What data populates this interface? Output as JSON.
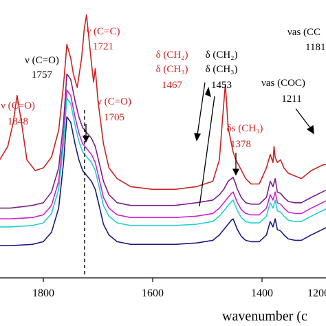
{
  "chart_data": {
    "type": "line",
    "xlabel": "wavenumber (c",
    "x_reversed": true,
    "xlim": [
      1900,
      1180
    ],
    "xticks": [
      1800,
      1600,
      1400,
      1200
    ],
    "xtick_labels": [
      "1800",
      "1600",
      "1400",
      "1200"
    ],
    "ylim": [
      0,
      1
    ],
    "series": [
      {
        "color": "#cc2222",
        "x": [
          1900,
          1880,
          1865,
          1855,
          1848,
          1840,
          1830,
          1815,
          1800,
          1785,
          1772,
          1763,
          1757,
          1750,
          1745,
          1738,
          1730,
          1725,
          1721,
          1717,
          1712,
          1708,
          1705,
          1700,
          1690,
          1680,
          1665,
          1640,
          1600,
          1560,
          1520,
          1490,
          1478,
          1472,
          1468,
          1467,
          1465,
          1462,
          1458,
          1453,
          1448,
          1440,
          1430,
          1420,
          1405,
          1392,
          1385,
          1380,
          1378,
          1376,
          1372,
          1366,
          1360,
          1352,
          1340,
          1328,
          1310,
          1290,
          1270,
          1255,
          1240,
          1228,
          1218,
          1212,
          1208,
          1205,
          1200,
          1195,
          1190,
          1186,
          1183,
          1181
        ],
        "y": [
          0.4,
          0.44,
          0.49,
          0.58,
          0.68,
          0.58,
          0.44,
          0.4,
          0.41,
          0.45,
          0.55,
          0.72,
          0.87,
          0.82,
          0.76,
          0.71,
          0.82,
          0.93,
          0.98,
          0.9,
          0.8,
          0.73,
          0.78,
          0.66,
          0.5,
          0.41,
          0.37,
          0.34,
          0.33,
          0.33,
          0.34,
          0.36,
          0.44,
          0.6,
          0.7,
          0.72,
          0.66,
          0.56,
          0.52,
          0.47,
          0.44,
          0.41,
          0.37,
          0.35,
          0.35,
          0.41,
          0.46,
          0.43,
          0.49,
          0.45,
          0.43,
          0.44,
          0.41,
          0.39,
          0.38,
          0.37,
          0.4,
          0.42,
          0.43,
          0.48,
          0.52,
          0.55,
          0.61,
          0.64,
          0.6,
          0.62,
          0.72,
          0.76,
          0.86,
          0.84,
          0.8,
          0.78
        ]
      },
      {
        "color": "#7b1f8a",
        "x": [
          1900,
          1860,
          1820,
          1800,
          1785,
          1772,
          1763,
          1757,
          1750,
          1742,
          1735,
          1728,
          1720,
          1712,
          1705,
          1698,
          1690,
          1680,
          1665,
          1640,
          1600,
          1560,
          1520,
          1490,
          1478,
          1470,
          1462,
          1456,
          1453,
          1450,
          1445,
          1438,
          1430,
          1420,
          1405,
          1392,
          1385,
          1380,
          1376,
          1372,
          1366,
          1360,
          1352,
          1340,
          1328,
          1310,
          1290,
          1270,
          1255,
          1240,
          1228,
          1218,
          1212,
          1208,
          1205,
          1200,
          1195,
          1190,
          1186,
          1183,
          1181
        ],
        "y": [
          0.26,
          0.26,
          0.27,
          0.28,
          0.32,
          0.41,
          0.58,
          0.76,
          0.74,
          0.66,
          0.6,
          0.56,
          0.54,
          0.52,
          0.49,
          0.43,
          0.36,
          0.31,
          0.28,
          0.27,
          0.27,
          0.27,
          0.28,
          0.29,
          0.31,
          0.33,
          0.36,
          0.37,
          0.375,
          0.36,
          0.33,
          0.3,
          0.28,
          0.275,
          0.275,
          0.3,
          0.36,
          0.34,
          0.37,
          0.32,
          0.315,
          0.3,
          0.285,
          0.28,
          0.28,
          0.3,
          0.32,
          0.34,
          0.38,
          0.41,
          0.44,
          0.49,
          0.54,
          0.52,
          0.55,
          0.62,
          0.66,
          0.74,
          0.72,
          0.7,
          0.68
        ]
      },
      {
        "color": "#cc22cc",
        "x": [
          1900,
          1860,
          1820,
          1800,
          1785,
          1772,
          1763,
          1757,
          1750,
          1742,
          1735,
          1728,
          1720,
          1712,
          1705,
          1698,
          1690,
          1680,
          1665,
          1640,
          1600,
          1560,
          1520,
          1490,
          1478,
          1470,
          1462,
          1456,
          1453,
          1450,
          1445,
          1438,
          1430,
          1420,
          1405,
          1392,
          1385,
          1380,
          1376,
          1372,
          1366,
          1360,
          1352,
          1340,
          1328,
          1310,
          1290,
          1270,
          1255,
          1240,
          1228,
          1218,
          1212,
          1208,
          1205,
          1200,
          1195,
          1190,
          1186,
          1183,
          1181
        ],
        "y": [
          0.22,
          0.22,
          0.225,
          0.235,
          0.27,
          0.36,
          0.53,
          0.7,
          0.68,
          0.6,
          0.54,
          0.5,
          0.48,
          0.46,
          0.43,
          0.37,
          0.3,
          0.26,
          0.235,
          0.225,
          0.225,
          0.225,
          0.23,
          0.24,
          0.26,
          0.28,
          0.3,
          0.315,
          0.32,
          0.305,
          0.28,
          0.255,
          0.24,
          0.235,
          0.235,
          0.26,
          0.31,
          0.29,
          0.32,
          0.28,
          0.275,
          0.26,
          0.245,
          0.24,
          0.24,
          0.26,
          0.28,
          0.3,
          0.34,
          0.37,
          0.4,
          0.45,
          0.5,
          0.48,
          0.51,
          0.58,
          0.62,
          0.7,
          0.68,
          0.66,
          0.64
        ]
      },
      {
        "color": "#20d0d0",
        "x": [
          1900,
          1860,
          1820,
          1800,
          1785,
          1772,
          1763,
          1757,
          1750,
          1742,
          1735,
          1728,
          1720,
          1712,
          1705,
          1698,
          1690,
          1680,
          1665,
          1640,
          1600,
          1560,
          1520,
          1490,
          1478,
          1470,
          1462,
          1456,
          1453,
          1450,
          1445,
          1438,
          1430,
          1420,
          1405,
          1392,
          1385,
          1380,
          1376,
          1372,
          1366,
          1360,
          1352,
          1340,
          1328,
          1310,
          1290,
          1270,
          1255,
          1240,
          1228,
          1218,
          1212,
          1208,
          1205,
          1200,
          1195,
          1190,
          1186,
          1183,
          1181
        ],
        "y": [
          0.19,
          0.19,
          0.195,
          0.205,
          0.24,
          0.33,
          0.5,
          0.67,
          0.65,
          0.57,
          0.51,
          0.47,
          0.45,
          0.43,
          0.4,
          0.34,
          0.27,
          0.23,
          0.205,
          0.195,
          0.195,
          0.195,
          0.2,
          0.21,
          0.23,
          0.25,
          0.27,
          0.285,
          0.29,
          0.275,
          0.25,
          0.225,
          0.21,
          0.205,
          0.205,
          0.23,
          0.28,
          0.26,
          0.29,
          0.25,
          0.245,
          0.23,
          0.215,
          0.21,
          0.21,
          0.23,
          0.25,
          0.27,
          0.31,
          0.34,
          0.37,
          0.42,
          0.47,
          0.45,
          0.48,
          0.55,
          0.59,
          0.67,
          0.65,
          0.63,
          0.61
        ]
      },
      {
        "color": "#1a1a80",
        "x": [
          1900,
          1860,
          1820,
          1800,
          1785,
          1772,
          1763,
          1757,
          1750,
          1742,
          1735,
          1728,
          1720,
          1712,
          1705,
          1698,
          1690,
          1680,
          1665,
          1640,
          1600,
          1560,
          1520,
          1490,
          1478,
          1470,
          1462,
          1456,
          1453,
          1450,
          1445,
          1438,
          1430,
          1420,
          1405,
          1392,
          1385,
          1380,
          1376,
          1372,
          1366,
          1360,
          1352,
          1340,
          1328,
          1310,
          1290,
          1270,
          1255,
          1240,
          1228,
          1218,
          1212,
          1208,
          1205,
          1200,
          1195,
          1190,
          1186,
          1183,
          1181
        ],
        "y": [
          0.12,
          0.12,
          0.125,
          0.135,
          0.17,
          0.26,
          0.43,
          0.6,
          0.58,
          0.5,
          0.44,
          0.4,
          0.38,
          0.36,
          0.33,
          0.27,
          0.2,
          0.16,
          0.135,
          0.125,
          0.125,
          0.125,
          0.13,
          0.14,
          0.16,
          0.18,
          0.2,
          0.215,
          0.22,
          0.205,
          0.18,
          0.155,
          0.14,
          0.135,
          0.135,
          0.16,
          0.21,
          0.19,
          0.22,
          0.18,
          0.175,
          0.16,
          0.145,
          0.14,
          0.14,
          0.16,
          0.18,
          0.2,
          0.24,
          0.27,
          0.3,
          0.35,
          0.4,
          0.38,
          0.41,
          0.48,
          0.52,
          0.6,
          0.58,
          0.56,
          0.54
        ]
      }
    ],
    "annotations": [
      {
        "id": "a1848",
        "lines": [
          "ν (C=O)",
          "1848"
        ],
        "color": "red"
      },
      {
        "id": "a1757",
        "lines": [
          "ν (C=O)",
          "1757"
        ],
        "color": "black"
      },
      {
        "id": "a1721",
        "lines": [
          "ν (C=C)",
          "1721"
        ],
        "color": "red"
      },
      {
        "id": "a1705",
        "lines": [
          "ν (C=O)",
          "1705"
        ],
        "color": "red"
      },
      {
        "id": "a1467",
        "lines": [
          "δ (CH₂)",
          "δ (CH₃)",
          "1467"
        ],
        "color": "red"
      },
      {
        "id": "a1453",
        "lines": [
          "δ (CH₂)",
          "δ (CH₃)",
          "1453"
        ],
        "color": "black"
      },
      {
        "id": "a1378",
        "lines": [
          "δs (CH₃)",
          "1378"
        ],
        "color": "red"
      },
      {
        "id": "a1211",
        "lines": [
          "νas (COC)",
          "1211"
        ],
        "color": "black"
      },
      {
        "id": "a1181",
        "lines": [
          "νas (CC",
          "1181"
        ],
        "color": "black"
      }
    ]
  }
}
